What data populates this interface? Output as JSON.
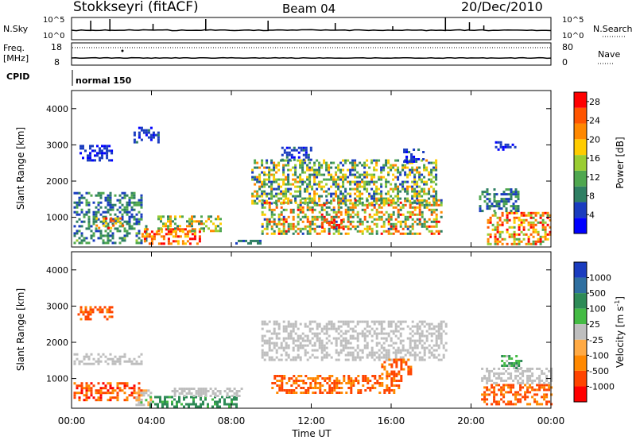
{
  "header": {
    "station": "Stokkseyri (fitACF)",
    "beam": "Beam 04",
    "date": "20/Dec/2010"
  },
  "top_panels": {
    "nsky_label": "N.Sky",
    "nsky_ticks": [
      "10^5",
      "10^0"
    ],
    "nsearch_label": "N.Search",
    "nsearch_ticks": [
      "10^5",
      "10^0"
    ],
    "freq_label_1": "Freq.",
    "freq_label_2": "[MHz]",
    "freq_ticks": [
      "18",
      "8"
    ],
    "nave_label": "Nave",
    "nave_ticks": [
      "80",
      "0"
    ],
    "cpid_label": "CPID",
    "cpid_value": "normal 150"
  },
  "colors": {
    "power": [
      "#0000ff",
      "#1a3cbf",
      "#2f7f63",
      "#4fa74f",
      "#9acd32",
      "#ffcc00",
      "#ff8800",
      "#ff5500",
      "#ff0000"
    ],
    "velocity_neg": [
      "#ff0000",
      "#ff4400",
      "#ff8800",
      "#ffaa44"
    ],
    "ground": "#bebebe",
    "velocity_pos": [
      "#44bb44",
      "#2e8b57",
      "#2f6fa0",
      "#1a3cbf"
    ]
  },
  "chart_data": [
    {
      "type": "heatmap",
      "title": "Power",
      "ylabel": "Slant Range [km]",
      "ylim": [
        180,
        4500
      ],
      "yticks": [
        "1000",
        "2000",
        "3000",
        "4000"
      ],
      "xlim_hours": [
        0,
        24
      ],
      "xticks": [
        "00:00",
        "04:00",
        "08:00",
        "12:00",
        "16:00",
        "20:00",
        "00:00"
      ],
      "colorbar_label": "Power [dB]",
      "colorbar_ticks": [
        "4",
        "8",
        "12",
        "16",
        "20",
        "24",
        "28"
      ],
      "clim": [
        0,
        30
      ],
      "blobs": [
        {
          "t": [
            0.1,
            3.7
          ],
          "r": [
            300,
            850
          ],
          "v": [
            4,
            14
          ]
        },
        {
          "t": [
            0.1,
            3.5
          ],
          "r": [
            850,
            1700
          ],
          "v": [
            4,
            12
          ]
        },
        {
          "t": [
            0.4,
            2.0
          ],
          "r": [
            2600,
            3000
          ],
          "v": [
            2,
            6
          ]
        },
        {
          "t": [
            1.2,
            2.6
          ],
          "r": [
            680,
            1000
          ],
          "v": [
            16,
            28
          ]
        },
        {
          "t": [
            3.1,
            4.3
          ],
          "r": [
            3050,
            3500
          ],
          "v": [
            2,
            8
          ]
        },
        {
          "t": [
            3.5,
            6.4
          ],
          "r": [
            280,
            700
          ],
          "v": [
            18,
            30
          ]
        },
        {
          "t": [
            4.3,
            7.5
          ],
          "r": [
            600,
            1050
          ],
          "v": [
            8,
            24
          ]
        },
        {
          "t": [
            8.2,
            9.5
          ],
          "r": [
            280,
            380
          ],
          "v": [
            4,
            10
          ]
        },
        {
          "t": [
            9.0,
            18.2
          ],
          "r": [
            1400,
            2600
          ],
          "v": [
            4,
            22
          ]
        },
        {
          "t": [
            9.5,
            18.5
          ],
          "r": [
            550,
            1500
          ],
          "v": [
            6,
            28
          ]
        },
        {
          "t": [
            12.5,
            13.5
          ],
          "r": [
            700,
            950
          ],
          "v": [
            24,
            30
          ]
        },
        {
          "t": [
            10.5,
            12.0
          ],
          "r": [
            2600,
            2950
          ],
          "v": [
            2,
            8
          ]
        },
        {
          "t": [
            16.6,
            17.6
          ],
          "r": [
            2550,
            2900
          ],
          "v": [
            2,
            8
          ]
        },
        {
          "t": [
            20.8,
            24.0
          ],
          "r": [
            280,
            1150
          ],
          "v": [
            10,
            30
          ]
        },
        {
          "t": [
            20.4,
            22.4
          ],
          "r": [
            1150,
            1800
          ],
          "v": [
            4,
            12
          ]
        },
        {
          "t": [
            21.2,
            22.2
          ],
          "r": [
            2900,
            3100
          ],
          "v": [
            2,
            6
          ]
        }
      ]
    },
    {
      "type": "heatmap",
      "title": "Velocity",
      "ylabel": "Slant Range [km]",
      "ylim": [
        180,
        4500
      ],
      "yticks": [
        "1000",
        "2000",
        "3000",
        "4000"
      ],
      "xlabel": "Time UT",
      "xlim_hours": [
        0,
        24
      ],
      "xticks": [
        "00:00",
        "04:00",
        "08:00",
        "12:00",
        "16:00",
        "20:00",
        "00:00"
      ],
      "colorbar_label_main": "Velocity  [m s",
      "colorbar_label_sup": "-1",
      "colorbar_label_end": "]",
      "colorbar_ticks": [
        "1000",
        "500",
        "100",
        "25",
        "-25",
        "-100",
        "-500",
        "-1000"
      ],
      "blobs": [
        {
          "t": [
            0.1,
            3.5
          ],
          "r": [
            400,
            900
          ],
          "v": [
            -600,
            -100
          ]
        },
        {
          "t": [
            0.1,
            3.5
          ],
          "r": [
            1400,
            1700
          ],
          "v": [
            -20,
            20
          ]
        },
        {
          "t": [
            0.3,
            2.0
          ],
          "r": [
            2650,
            3000
          ],
          "v": [
            -500,
            -100
          ]
        },
        {
          "t": [
            3.2,
            4.0
          ],
          "r": [
            300,
            700
          ],
          "v": [
            -60,
            30
          ]
        },
        {
          "t": [
            3.9,
            8.2
          ],
          "r": [
            250,
            520
          ],
          "v": [
            30,
            400
          ]
        },
        {
          "t": [
            5.0,
            8.5
          ],
          "r": [
            500,
            750
          ],
          "v": [
            -20,
            20
          ]
        },
        {
          "t": [
            9.5,
            18.8
          ],
          "r": [
            1500,
            2600
          ],
          "v": [
            -20,
            20
          ]
        },
        {
          "t": [
            10.0,
            16.5
          ],
          "r": [
            600,
            1100
          ],
          "v": [
            -500,
            -100
          ]
        },
        {
          "t": [
            15.5,
            17.0
          ],
          "r": [
            1150,
            1550
          ],
          "v": [
            -400,
            -100
          ]
        },
        {
          "t": [
            20.5,
            24.0
          ],
          "r": [
            320,
            850
          ],
          "v": [
            -500,
            -100
          ]
        },
        {
          "t": [
            20.5,
            24.0
          ],
          "r": [
            850,
            1300
          ],
          "v": [
            -20,
            20
          ]
        },
        {
          "t": [
            21.5,
            22.5
          ],
          "r": [
            1300,
            1650
          ],
          "v": [
            0,
            150
          ]
        }
      ]
    }
  ]
}
